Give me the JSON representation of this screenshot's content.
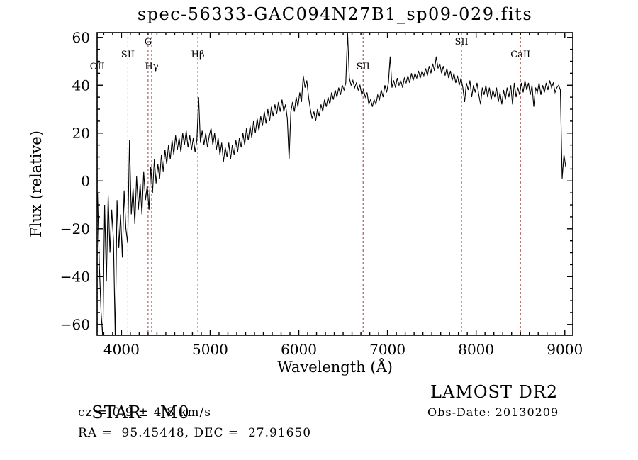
{
  "title": "spec-56333-GAC094N27B1_sp09-029.fits",
  "chart_data": {
    "type": "line",
    "title": "spec-56333-GAC094N27B1_sp09-029.fits",
    "xlabel": "Wavelength (Å)",
    "ylabel": "Flux (relative)",
    "xlim": [
      3725,
      9090
    ],
    "ylim": [
      -64.5,
      62
    ],
    "xticks": [
      4000,
      5000,
      6000,
      7000,
      8000,
      9000
    ],
    "x_minor_step": 100,
    "yticks": [
      -60,
      -40,
      -20,
      0,
      20,
      40,
      60
    ],
    "y_minor_step": 5,
    "grid": false,
    "legend": "none",
    "trace_color": "#000000",
    "line_marker_color": "#97403e",
    "spectral_lines": [
      {
        "label": "OII",
        "wavelength": 3727,
        "row": 3
      },
      {
        "label": "SII",
        "wavelength": 4072,
        "row": 2
      },
      {
        "label": "G",
        "wavelength": 4300,
        "row": 1
      },
      {
        "label": "Hγ",
        "wavelength": 4340,
        "row": 3
      },
      {
        "label": "Hβ",
        "wavelength": 4861,
        "row": 2
      },
      {
        "label": "SII",
        "wavelength": 6725,
        "row": 3
      },
      {
        "label": "SII",
        "wavelength": 7835,
        "row": 1
      },
      {
        "label": "CaII",
        "wavelength": 8500,
        "row": 2
      }
    ],
    "series": [
      {
        "name": "flux",
        "x_start": 3730,
        "x_step": 20,
        "y": [
          -5,
          -35,
          -55,
          -66,
          -10,
          -42,
          -6,
          -30,
          -12,
          -25,
          -66,
          -8,
          -28,
          -14,
          -32,
          -4,
          -20,
          -26,
          17,
          -14,
          -3,
          -18,
          2,
          -12,
          -1,
          -14,
          4,
          -8,
          -2,
          -12,
          6,
          -5,
          9,
          -1,
          7,
          1,
          11,
          4,
          13,
          7,
          15,
          9,
          17,
          11,
          19,
          13,
          18,
          12,
          20,
          15,
          21,
          14,
          19,
          13,
          18,
          12,
          17,
          35,
          16,
          21,
          15,
          20,
          14,
          19,
          22,
          15,
          20,
          13,
          18,
          11,
          16,
          8,
          14,
          10,
          16,
          9,
          15,
          11,
          17,
          12,
          18,
          14,
          20,
          15,
          22,
          17,
          23,
          18,
          25,
          20,
          26,
          21,
          27,
          23,
          29,
          24,
          30,
          25,
          31,
          27,
          32,
          28,
          33,
          29,
          34,
          29,
          32,
          26,
          9,
          29,
          33,
          29,
          35,
          31,
          37,
          33,
          44,
          39,
          42,
          35,
          30,
          26,
          29,
          25,
          30,
          27,
          32,
          29,
          34,
          31,
          35,
          32,
          37,
          34,
          38,
          35,
          39,
          36,
          40,
          38,
          41,
          62,
          43,
          40,
          42,
          39,
          41,
          38,
          40,
          36,
          38,
          35,
          37,
          32,
          34,
          31,
          34,
          32,
          36,
          34,
          38,
          35,
          40,
          37,
          41,
          52,
          39,
          42,
          39,
          43,
          40,
          42,
          39,
          43,
          41,
          44,
          41,
          45,
          42,
          45,
          43,
          46,
          43,
          46,
          44,
          47,
          44,
          48,
          45,
          49,
          46,
          52,
          47,
          49,
          45,
          48,
          44,
          47,
          43,
          46,
          42,
          45,
          41,
          44,
          40,
          43,
          39,
          33,
          41,
          38,
          42,
          35,
          40,
          37,
          41,
          36,
          32,
          39,
          36,
          40,
          35,
          39,
          34,
          38,
          35,
          39,
          33,
          37,
          32,
          38,
          34,
          39,
          35,
          40,
          32,
          41,
          35,
          39,
          36,
          41,
          37,
          42,
          38,
          41,
          36,
          40,
          31,
          39,
          37,
          41,
          36,
          40,
          37,
          41,
          38,
          42,
          39,
          41,
          37,
          39,
          40,
          38,
          1,
          11,
          6
        ]
      }
    ]
  },
  "footer": {
    "class_label": "STAR",
    "subclass_label": "M0",
    "survey_label": "LAMOST DR2",
    "cz_line": "cz = 0.9 ± 4.8 km/s",
    "obsdate_line": "Obs-Date: 20130209",
    "radec_line": "RA =  95.45448, DEC =  27.91650"
  }
}
